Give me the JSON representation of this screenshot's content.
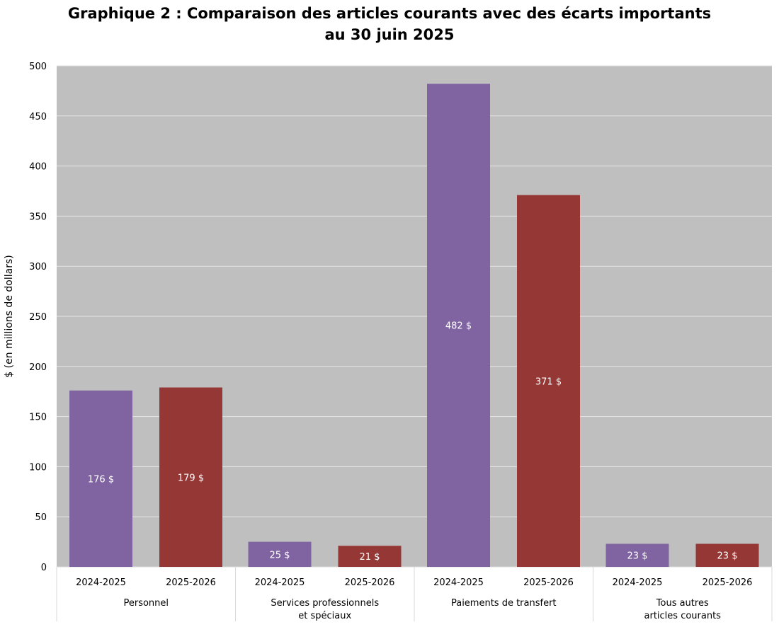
{
  "chart_data": {
    "type": "bar",
    "title_line1": "Graphique 2 : Comparaison des articles courants avec des écarts importants",
    "title_line2": "au 30 juin 2025",
    "ylabel": "$ (en millions de dollars)",
    "xlabel": "",
    "ylim": [
      0,
      500
    ],
    "yticks": [
      0,
      50,
      100,
      150,
      200,
      250,
      300,
      350,
      400,
      450,
      500
    ],
    "grid": true,
    "groups": [
      {
        "label_lines": [
          "Personnel"
        ],
        "bars": [
          {
            "year": "2024-2025",
            "value": 176,
            "label": "176 $"
          },
          {
            "year": "2025-2026",
            "value": 179,
            "label": "179 $"
          }
        ]
      },
      {
        "label_lines": [
          "Services professionnels",
          "et spéciaux"
        ],
        "bars": [
          {
            "year": "2024-2025",
            "value": 25,
            "label": "25 $"
          },
          {
            "year": "2025-2026",
            "value": 21,
            "label": "21 $"
          }
        ]
      },
      {
        "label_lines": [
          "Paiements de transfert"
        ],
        "bars": [
          {
            "year": "2024-2025",
            "value": 482,
            "label": "482 $"
          },
          {
            "year": "2025-2026",
            "value": 371,
            "label": "371 $"
          }
        ]
      },
      {
        "label_lines": [
          "Tous autres",
          "articles courants"
        ],
        "bars": [
          {
            "year": "2024-2025",
            "value": 23,
            "label": "23 $"
          },
          {
            "year": "2025-2026",
            "value": 23,
            "label": "23 $"
          }
        ]
      }
    ],
    "colors": {
      "2024-2025": "#8064A2",
      "2025-2026": "#953735",
      "plot_background": "#BFBFBF",
      "grid": "#E6E6E6"
    }
  }
}
